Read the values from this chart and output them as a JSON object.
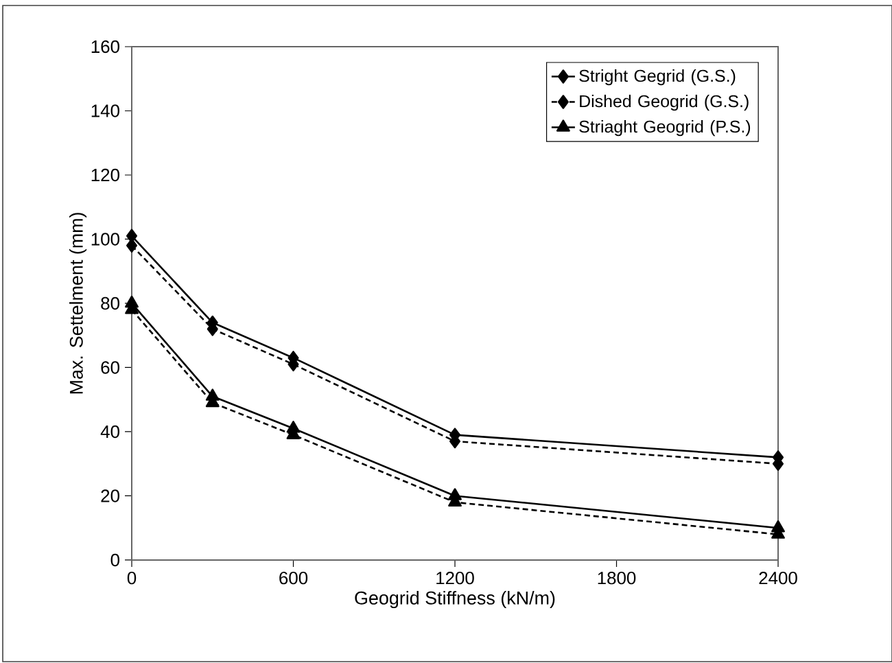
{
  "chart_data": {
    "type": "line",
    "xlabel": "Geogrid Stiffness (kN/m)",
    "ylabel": "Max. Settelment (mm)",
    "x": [
      0,
      300,
      600,
      1200,
      2400
    ],
    "xlim": [
      0,
      2400
    ],
    "xticks": [
      0,
      600,
      1200,
      1800,
      2400
    ],
    "ylim": [
      0,
      160
    ],
    "yticks": [
      0,
      20,
      40,
      60,
      80,
      100,
      120,
      140,
      160
    ],
    "legend": "top right",
    "grid": false,
    "series": [
      {
        "name": "Stright Gegrid (G.S.)",
        "color": "#000000",
        "marker": "diamond",
        "line_style": "solid",
        "values": [
          101,
          74,
          63,
          39,
          32
        ]
      },
      {
        "name": "Dished Geogrid (G.S.)",
        "color": "#000000",
        "marker": "diamond",
        "line_style": "dashed",
        "values": [
          98,
          72,
          61,
          37,
          30
        ]
      },
      {
        "name": "Striaght Geogrid (P.S.)",
        "color": "#000000",
        "marker": "triangle",
        "line_style": "solid",
        "values": [
          80,
          51,
          41,
          20,
          10
        ]
      },
      {
        "color": "#000000",
        "marker": "triangle",
        "line_style": "dashed",
        "values": [
          78,
          49,
          39,
          18,
          8
        ]
      }
    ]
  }
}
